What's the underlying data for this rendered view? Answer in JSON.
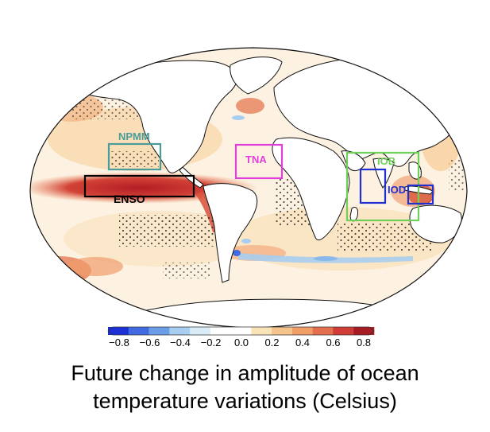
{
  "regions": [
    {
      "id": "npmm",
      "label": "NPMM",
      "color": "#4a9c9a"
    },
    {
      "id": "enso",
      "label": "ENSO",
      "color": "#000000"
    },
    {
      "id": "tna",
      "label": "TNA",
      "color": "#e040d8"
    },
    {
      "id": "iob",
      "label": "IOB",
      "color": "#6fcf5a"
    },
    {
      "id": "iod",
      "label": "IOD",
      "color": "#1f2fd0"
    }
  ],
  "colorbar": {
    "ticks": [
      "−0.8",
      "−0.6",
      "−0.4",
      "−0.2",
      "0.0",
      "0.2",
      "0.4",
      "0.6",
      "0.8"
    ],
    "colors": [
      "#1a2fd6",
      "#3f6ae0",
      "#6b9ce8",
      "#a7cdf0",
      "#d9ecf8",
      "#ffffff",
      "#ffffff",
      "#fbe3b8",
      "#f6c48a",
      "#ef9f66",
      "#e26f4d",
      "#cf3b35",
      "#a51c24"
    ]
  },
  "caption": {
    "line1": "Future change in amplitude of ocean",
    "line2": "temperature variations (Celsius)"
  }
}
